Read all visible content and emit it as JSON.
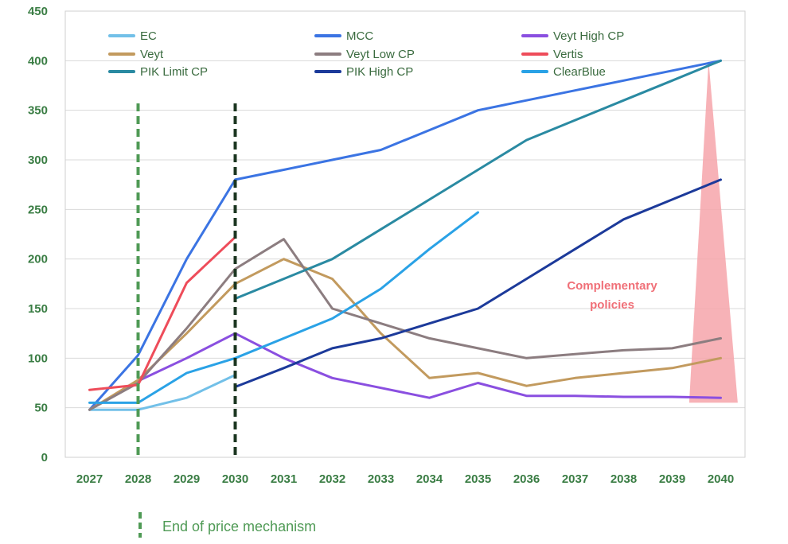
{
  "chart_data": {
    "type": "line",
    "title": "",
    "xlabel": "",
    "ylabel": "",
    "x": [
      "2027",
      "2028",
      "2029",
      "2030",
      "2031",
      "2032",
      "2033",
      "2034",
      "2035",
      "2036",
      "2037",
      "2038",
      "2039",
      "2040"
    ],
    "ylim": [
      0,
      450
    ],
    "yticks": [
      0,
      50,
      100,
      150,
      200,
      250,
      300,
      350,
      400,
      450
    ],
    "grid": "horizontal",
    "legend_placement": "top",
    "series": [
      {
        "name": "EC",
        "color": "#72c0e8",
        "values": [
          48,
          48,
          60,
          83,
          null,
          null,
          null,
          null,
          null,
          null,
          null,
          null,
          null,
          null
        ]
      },
      {
        "name": "MCC",
        "color": "#3b74e3",
        "values": [
          48,
          103,
          200,
          280,
          290,
          300,
          310,
          330,
          350,
          360,
          370,
          380,
          390,
          400
        ]
      },
      {
        "name": "Veyt High CP",
        "color": "#8a4fe0",
        "values": [
          null,
          77,
          100,
          125,
          100,
          80,
          70,
          60,
          75,
          62,
          62,
          61,
          61,
          60
        ]
      },
      {
        "name": "Veyt",
        "color": "#c29a5e",
        "values": [
          48,
          78,
          125,
          175,
          200,
          180,
          125,
          80,
          85,
          72,
          80,
          85,
          90,
          100
        ]
      },
      {
        "name": "Veyt Low CP",
        "color": "#8c7d80",
        "values": [
          48,
          75,
          130,
          190,
          220,
          150,
          135,
          120,
          110,
          100,
          104,
          108,
          110,
          120
        ]
      },
      {
        "name": "Vertis",
        "color": "#ee4c5a",
        "values": [
          68,
          73,
          176,
          222,
          null,
          null,
          null,
          null,
          null,
          null,
          null,
          null,
          null,
          null
        ]
      },
      {
        "name": "PIK Limit CP",
        "color": "#2a8aa2",
        "values": [
          null,
          null,
          null,
          160,
          180,
          200,
          230,
          260,
          290,
          320,
          340,
          360,
          380,
          400
        ]
      },
      {
        "name": "PIK High CP",
        "color": "#1c3a9a",
        "values": [
          null,
          null,
          null,
          71,
          90,
          110,
          120,
          135,
          150,
          180,
          210,
          240,
          260,
          280
        ]
      },
      {
        "name": "ClearBlue",
        "color": "#2aa2e6",
        "values": [
          55,
          55,
          85,
          100,
          120,
          140,
          170,
          210,
          247,
          null,
          null,
          null,
          null,
          null
        ]
      }
    ],
    "vertical_markers": [
      {
        "x": "2028",
        "color": "#4f9a55",
        "style": "dashed"
      },
      {
        "x": "2030",
        "color": "#1b3520",
        "style": "dashed"
      }
    ],
    "shaded_region": {
      "color": "#f6a4aa",
      "apex": [
        "2039.75",
        400
      ],
      "base": [
        [
          "2039.35",
          55
        ],
        [
          "2040.35",
          55
        ]
      ]
    },
    "annotation": {
      "line1": "Complementary",
      "line2": "policies",
      "color": "#f07078"
    },
    "footer_marker_label": "End of price mechanism"
  }
}
